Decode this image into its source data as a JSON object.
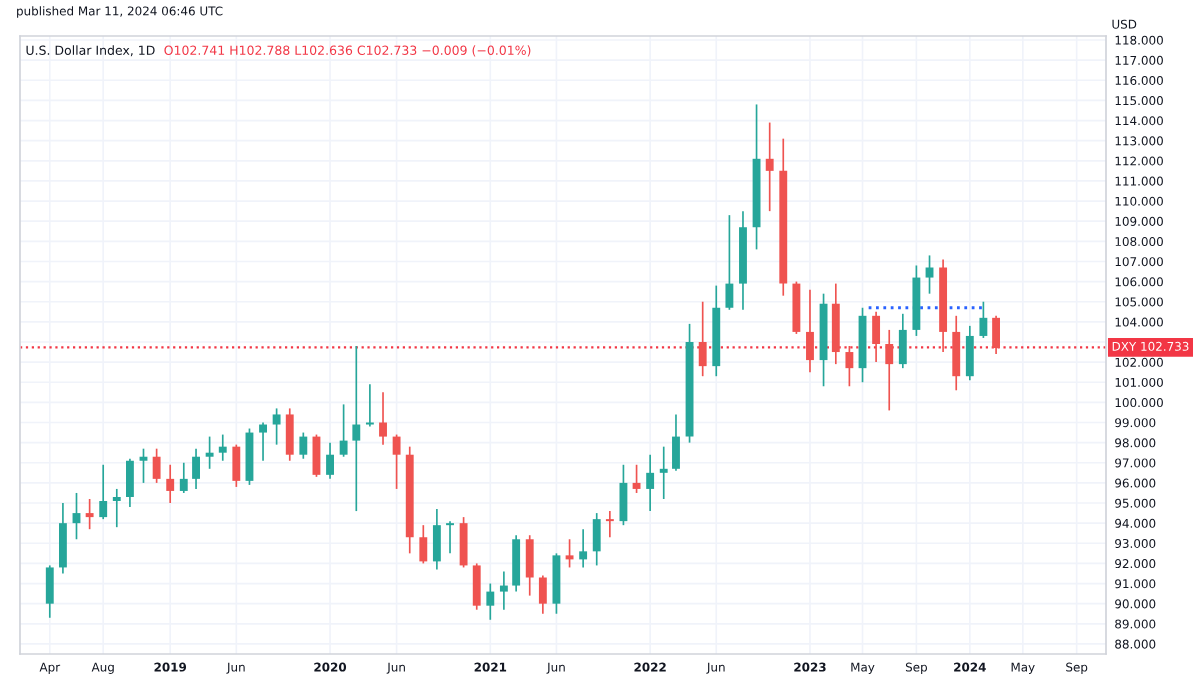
{
  "chart_data": {
    "type": "candlestick",
    "title": "U.S. Dollar Index, 1D",
    "subtitle": "O102.741 H102.788 L102.636 C102.733 −0.009 (−0.01%)",
    "ylabel": "USD",
    "annotations": [
      "published Mar 11, 2024 06:46 UTC"
    ],
    "x": [
      "2018-04",
      "2018-05",
      "2018-06",
      "2018-07",
      "2018-08",
      "2018-09",
      "2018-10",
      "2018-11",
      "2018-12",
      "2019-01",
      "2019-02",
      "2019-03",
      "2019-04",
      "2019-05",
      "2019-06",
      "2019-07",
      "2019-08",
      "2019-09",
      "2019-10",
      "2019-11",
      "2019-12",
      "2020-01",
      "2020-02",
      "2020-03",
      "2020-04",
      "2020-05",
      "2020-06",
      "2020-07",
      "2020-08",
      "2020-09",
      "2020-10",
      "2020-11",
      "2020-12",
      "2021-01",
      "2021-02",
      "2021-03",
      "2021-04",
      "2021-05",
      "2021-06",
      "2021-07",
      "2021-08",
      "2021-09",
      "2021-10",
      "2021-11",
      "2021-12",
      "2022-01",
      "2022-02",
      "2022-03",
      "2022-04",
      "2022-05",
      "2022-06",
      "2022-07",
      "2022-08",
      "2022-09",
      "2022-10",
      "2022-11",
      "2022-12",
      "2023-01",
      "2023-02",
      "2023-03",
      "2023-04",
      "2023-05",
      "2023-06",
      "2023-07",
      "2023-08",
      "2023-09",
      "2023-10",
      "2023-11",
      "2023-12",
      "2024-01",
      "2024-02",
      "2024-03"
    ],
    "ohlc": [
      [
        90.0,
        91.9,
        89.3,
        91.8
      ],
      [
        91.8,
        95.0,
        91.5,
        94.0
      ],
      [
        94.0,
        95.5,
        93.2,
        94.5
      ],
      [
        94.5,
        95.2,
        93.7,
        94.3
      ],
      [
        94.3,
        96.9,
        94.2,
        95.1
      ],
      [
        95.1,
        95.7,
        93.8,
        95.3
      ],
      [
        95.3,
        97.2,
        94.8,
        97.1
      ],
      [
        97.1,
        97.7,
        96.0,
        97.3
      ],
      [
        97.3,
        97.7,
        96.0,
        96.2
      ],
      [
        96.2,
        96.9,
        95.0,
        95.6
      ],
      [
        95.6,
        97.0,
        95.5,
        96.2
      ],
      [
        96.2,
        97.7,
        95.7,
        97.3
      ],
      [
        97.3,
        98.3,
        96.7,
        97.5
      ],
      [
        97.5,
        98.4,
        97.1,
        97.8
      ],
      [
        97.8,
        97.9,
        95.8,
        96.1
      ],
      [
        96.1,
        98.7,
        95.9,
        98.5
      ],
      [
        98.5,
        99.0,
        97.1,
        98.9
      ],
      [
        98.9,
        99.7,
        97.9,
        99.4
      ],
      [
        99.4,
        99.7,
        97.1,
        97.4
      ],
      [
        97.4,
        98.5,
        97.2,
        98.3
      ],
      [
        98.3,
        98.4,
        96.3,
        96.4
      ],
      [
        96.4,
        98.0,
        96.2,
        97.4
      ],
      [
        97.4,
        99.9,
        97.3,
        98.1
      ],
      [
        98.1,
        102.8,
        94.6,
        98.9
      ],
      [
        98.9,
        100.9,
        98.8,
        99.0
      ],
      [
        99.0,
        100.5,
        97.9,
        98.3
      ],
      [
        98.3,
        98.4,
        95.7,
        97.4
      ],
      [
        97.4,
        97.8,
        92.5,
        93.3
      ],
      [
        93.3,
        93.9,
        92.0,
        92.1
      ],
      [
        92.1,
        94.7,
        91.7,
        93.9
      ],
      [
        93.9,
        94.1,
        92.5,
        94.0
      ],
      [
        94.0,
        94.3,
        91.8,
        91.9
      ],
      [
        91.9,
        92.0,
        89.7,
        89.9
      ],
      [
        89.9,
        91.0,
        89.2,
        90.6
      ],
      [
        90.6,
        91.6,
        89.7,
        90.9
      ],
      [
        90.9,
        93.4,
        90.6,
        93.2
      ],
      [
        93.2,
        93.4,
        90.4,
        91.3
      ],
      [
        91.3,
        91.4,
        89.5,
        90.0
      ],
      [
        90.0,
        92.5,
        89.5,
        92.4
      ],
      [
        92.4,
        93.2,
        91.8,
        92.2
      ],
      [
        92.2,
        93.7,
        91.8,
        92.6
      ],
      [
        92.6,
        94.5,
        91.9,
        94.2
      ],
      [
        94.2,
        94.6,
        93.3,
        94.1
      ],
      [
        94.1,
        96.9,
        93.9,
        96.0
      ],
      [
        96.0,
        96.9,
        95.5,
        95.7
      ],
      [
        95.7,
        97.4,
        94.6,
        96.5
      ],
      [
        96.5,
        97.8,
        95.2,
        96.7
      ],
      [
        96.7,
        99.4,
        96.6,
        98.3
      ],
      [
        98.3,
        103.9,
        98.0,
        103.0
      ],
      [
        103.0,
        105.0,
        101.3,
        101.8
      ],
      [
        101.8,
        105.8,
        101.3,
        104.7
      ],
      [
        104.7,
        109.3,
        104.6,
        105.9
      ],
      [
        105.9,
        109.5,
        104.6,
        108.7
      ],
      [
        108.7,
        114.8,
        107.6,
        112.1
      ],
      [
        112.1,
        113.9,
        109.5,
        111.5
      ],
      [
        111.5,
        113.1,
        105.3,
        105.9
      ],
      [
        105.9,
        106.0,
        103.4,
        103.5
      ],
      [
        103.5,
        105.6,
        101.5,
        102.1
      ],
      [
        102.1,
        105.4,
        100.8,
        104.9
      ],
      [
        104.9,
        105.9,
        101.9,
        102.5
      ],
      [
        102.5,
        102.8,
        100.8,
        101.7
      ],
      [
        101.7,
        104.7,
        101.0,
        104.3
      ],
      [
        104.3,
        104.5,
        102.0,
        102.9
      ],
      [
        102.9,
        103.6,
        99.6,
        101.9
      ],
      [
        101.9,
        104.4,
        101.7,
        103.6
      ],
      [
        103.6,
        106.8,
        103.3,
        106.2
      ],
      [
        106.2,
        107.3,
        105.4,
        106.7
      ],
      [
        106.7,
        107.1,
        102.5,
        103.5
      ],
      [
        103.5,
        104.3,
        100.6,
        101.3
      ],
      [
        101.3,
        103.8,
        101.1,
        103.3
      ],
      [
        103.3,
        105.0,
        103.2,
        104.2
      ],
      [
        104.2,
        104.3,
        102.4,
        102.7
      ]
    ],
    "series": [
      {
        "type": "line",
        "color": "#2962ff",
        "line_style": "dotted",
        "x": [
          "2023-05-15",
          "2024-02-05"
        ],
        "values": [
          104.7,
          104.7
        ]
      }
    ],
    "ref_lines": [
      {
        "axis": "y",
        "value": 102.733,
        "label": "DXY 102.733",
        "color": "#f23645",
        "line_style": "dotted"
      }
    ],
    "xlim": [
      "2018-01-23",
      "2024-11-07"
    ],
    "xticks": [
      {
        "value": "2018-04-01",
        "label": "Apr"
      },
      {
        "value": "2018-08-01",
        "label": "Aug"
      },
      {
        "value": "2019-01-01",
        "label": "2019"
      },
      {
        "value": "2019-06-01",
        "label": "Jun"
      },
      {
        "value": "2020-01-01",
        "label": "2020"
      },
      {
        "value": "2020-06-01",
        "label": "Jun"
      },
      {
        "value": "2021-01-01",
        "label": "2021"
      },
      {
        "value": "2021-06-01",
        "label": "Jun"
      },
      {
        "value": "2022-01-01",
        "label": "2022"
      },
      {
        "value": "2022-06-01",
        "label": "Jun"
      },
      {
        "value": "2023-01-01",
        "label": "2023"
      },
      {
        "value": "2023-05-01",
        "label": "May"
      },
      {
        "value": "2023-09-01",
        "label": "Sep"
      },
      {
        "value": "2024-01-01",
        "label": "2024"
      },
      {
        "value": "2024-05-01",
        "label": "May"
      },
      {
        "value": "2024-09-01",
        "label": "Sep"
      }
    ],
    "ylim": [
      87.5,
      118.2
    ],
    "yticks": [
      {
        "value": 88,
        "label": "88.000"
      },
      {
        "value": 89,
        "label": "89.000"
      },
      {
        "value": 90,
        "label": "90.000"
      },
      {
        "value": 91,
        "label": "91.000"
      },
      {
        "value": 92,
        "label": "92.000"
      },
      {
        "value": 93,
        "label": "93.000"
      },
      {
        "value": 94,
        "label": "94.000"
      },
      {
        "value": 95,
        "label": "95.000"
      },
      {
        "value": 96,
        "label": "96.000"
      },
      {
        "value": 97,
        "label": "97.000"
      },
      {
        "value": 98,
        "label": "98.000"
      },
      {
        "value": 99,
        "label": "99.000"
      },
      {
        "value": 100,
        "label": "100.000"
      },
      {
        "value": 101,
        "label": "101.000"
      },
      {
        "value": 102,
        "label": "102.000"
      },
      {
        "value": 103,
        "label": null
      },
      {
        "value": 104,
        "label": "104.000"
      },
      {
        "value": 105,
        "label": "105.000"
      },
      {
        "value": 106,
        "label": "106.000"
      },
      {
        "value": 107,
        "label": "107.000"
      },
      {
        "value": 108,
        "label": "108.000"
      },
      {
        "value": 109,
        "label": "109.000"
      },
      {
        "value": 110,
        "label": "110.000"
      },
      {
        "value": 111,
        "label": "111.000"
      },
      {
        "value": 112,
        "label": "112.000"
      },
      {
        "value": 113,
        "label": "113.000"
      },
      {
        "value": 114,
        "label": "114.000"
      },
      {
        "value": 115,
        "label": "115.000"
      },
      {
        "value": 116,
        "label": "116.000"
      },
      {
        "value": 117,
        "label": "117.000"
      },
      {
        "value": 118,
        "label": "118.000"
      }
    ],
    "grid": true,
    "legend": false
  }
}
